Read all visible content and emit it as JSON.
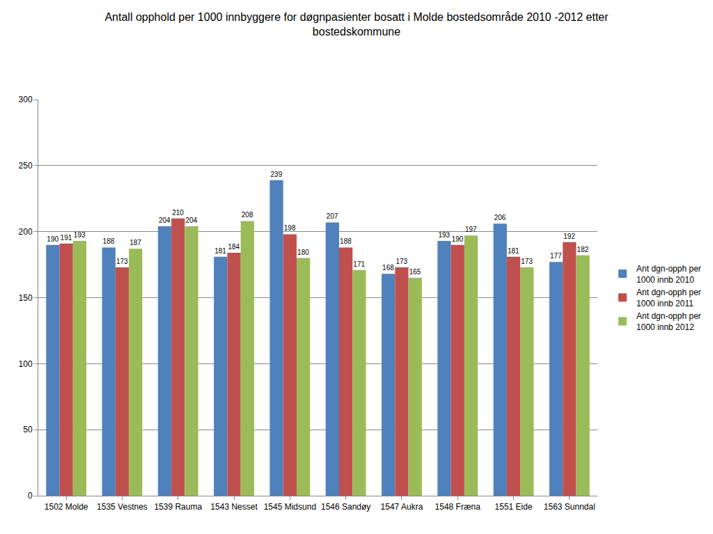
{
  "chart_data": {
    "type": "bar",
    "title": "Antall opphold per 1000 innbyggere for døgnpasienter bosatt i Molde bostedsområde 2010 -2012 etter bostedskommune",
    "categories": [
      "1502 Molde",
      "1535 Vestnes",
      "1539 Rauma",
      "1543 Nesset",
      "1545 Midsund",
      "1546 Sandøy",
      "1547 Aukra",
      "1548 Fræna",
      "1551 Eide",
      "1563 Sunndal"
    ],
    "series": [
      {
        "name": "Ant dgn-opph per 1000 innb 2010",
        "color": "#4F81BD",
        "values": [
          190,
          188,
          204,
          181,
          239,
          207,
          168,
          193,
          206,
          177
        ]
      },
      {
        "name": "Ant dgn-opph per 1000 innb 2011",
        "color": "#C0504D",
        "values": [
          191,
          173,
          210,
          184,
          198,
          188,
          173,
          190,
          181,
          192
        ]
      },
      {
        "name": "Ant dgn-opph per 1000 innb 2012",
        "color": "#9BBB59",
        "values": [
          193,
          187,
          204,
          208,
          180,
          171,
          165,
          197,
          173,
          182
        ]
      }
    ],
    "ylim": [
      0,
      300
    ],
    "yticks": [
      0,
      50,
      100,
      150,
      200,
      250,
      300
    ],
    "grid": true,
    "legend": "right",
    "data_labels": true
  }
}
